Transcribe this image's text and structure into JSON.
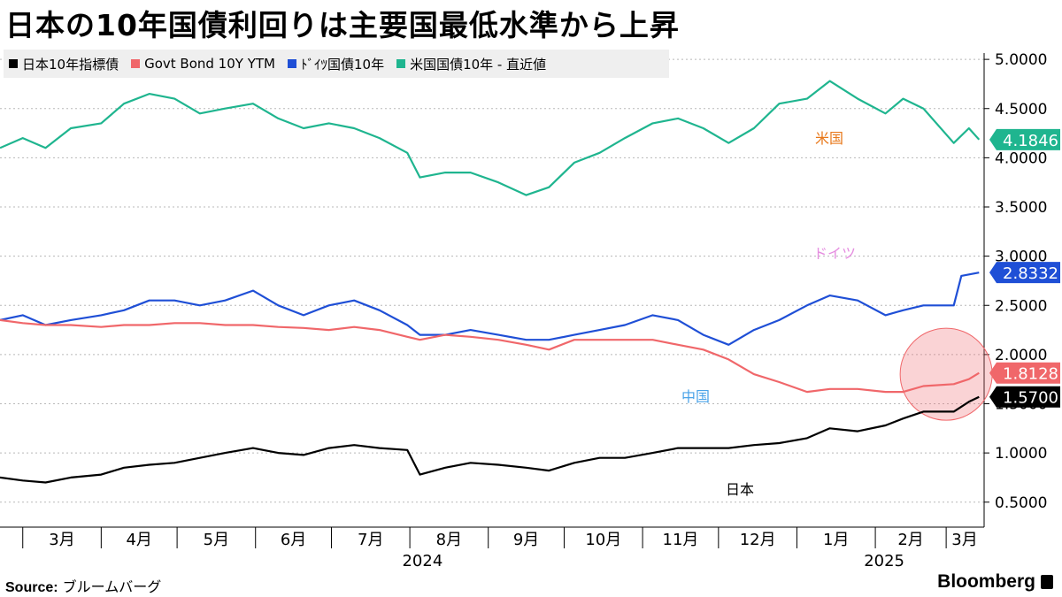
{
  "title": "日本の10年国債利回りは主要国最低水準から上昇",
  "legend": [
    {
      "label": "日本10年指標債",
      "color": "#000000"
    },
    {
      "label": "Govt Bond 10Y YTM",
      "color": "#f0676a"
    },
    {
      "label": "ﾄﾞｲﾂ国債10年",
      "color": "#1f4fd6"
    },
    {
      "label": "米国国債10年 - 直近値",
      "color": "#1fb58f"
    }
  ],
  "chart_data": {
    "type": "line",
    "x_tick_labels": [
      "3月",
      "4月",
      "5月",
      "6月",
      "7月",
      "8月",
      "9月",
      "10月",
      "11月",
      "12月",
      "1月",
      "2月",
      "3月"
    ],
    "x_tick_dates": [
      "2024-03-01",
      "2024-04-01",
      "2024-05-01",
      "2024-06-01",
      "2024-07-01",
      "2024-08-01",
      "2024-09-01",
      "2024-10-01",
      "2024-11-01",
      "2024-12-01",
      "2025-01-01",
      "2025-02-01",
      "2025-03-01"
    ],
    "year_labels": [
      {
        "label": "2024",
        "date": "2024-08-01"
      },
      {
        "label": "2025",
        "date": "2025-02-01"
      }
    ],
    "x_range": [
      "2024-02-21",
      "2025-03-16"
    ],
    "y_ticks": [
      "0.5000",
      "1.0000",
      "1.5000",
      "2.0000",
      "2.5000",
      "3.0000",
      "3.5000",
      "4.0000",
      "4.5000",
      "5.0000"
    ],
    "ylim": [
      0.3,
      5.1
    ],
    "grid": "horizontal dotted",
    "legend_position": "top-left",
    "series": [
      {
        "name": "米国国債10年 - 直近値",
        "label": "米国",
        "color": "#1fb58f",
        "last": "4.1846",
        "points": [
          [
            "2024-02-21",
            4.1
          ],
          [
            "2024-03-01",
            4.2
          ],
          [
            "2024-03-10",
            4.1
          ],
          [
            "2024-03-20",
            4.3
          ],
          [
            "2024-04-01",
            4.35
          ],
          [
            "2024-04-10",
            4.55
          ],
          [
            "2024-04-20",
            4.65
          ],
          [
            "2024-04-30",
            4.6
          ],
          [
            "2024-05-10",
            4.45
          ],
          [
            "2024-05-20",
            4.5
          ],
          [
            "2024-05-31",
            4.55
          ],
          [
            "2024-06-10",
            4.4
          ],
          [
            "2024-06-20",
            4.3
          ],
          [
            "2024-06-30",
            4.35
          ],
          [
            "2024-07-10",
            4.3
          ],
          [
            "2024-07-20",
            4.2
          ],
          [
            "2024-07-31",
            4.05
          ],
          [
            "2024-08-05",
            3.8
          ],
          [
            "2024-08-15",
            3.85
          ],
          [
            "2024-08-25",
            3.85
          ],
          [
            "2024-09-05",
            3.75
          ],
          [
            "2024-09-16",
            3.62
          ],
          [
            "2024-09-25",
            3.7
          ],
          [
            "2024-10-05",
            3.95
          ],
          [
            "2024-10-15",
            4.05
          ],
          [
            "2024-10-25",
            4.2
          ],
          [
            "2024-11-05",
            4.35
          ],
          [
            "2024-11-15",
            4.4
          ],
          [
            "2024-11-25",
            4.3
          ],
          [
            "2024-12-05",
            4.15
          ],
          [
            "2024-12-15",
            4.3
          ],
          [
            "2024-12-25",
            4.55
          ],
          [
            "2025-01-05",
            4.6
          ],
          [
            "2025-01-14",
            4.78
          ],
          [
            "2025-01-25",
            4.6
          ],
          [
            "2025-02-05",
            4.45
          ],
          [
            "2025-02-12",
            4.6
          ],
          [
            "2025-02-20",
            4.5
          ],
          [
            "2025-03-04",
            4.15
          ],
          [
            "2025-03-10",
            4.3
          ],
          [
            "2025-03-14",
            4.1846
          ]
        ]
      },
      {
        "name": "ﾄﾞｲﾂ国債10年",
        "label": "ドイツ",
        "color": "#1f4fd6",
        "last": "2.8332",
        "points": [
          [
            "2024-02-21",
            2.35
          ],
          [
            "2024-03-01",
            2.4
          ],
          [
            "2024-03-10",
            2.3
          ],
          [
            "2024-03-20",
            2.35
          ],
          [
            "2024-04-01",
            2.4
          ],
          [
            "2024-04-10",
            2.45
          ],
          [
            "2024-04-20",
            2.55
          ],
          [
            "2024-04-30",
            2.55
          ],
          [
            "2024-05-10",
            2.5
          ],
          [
            "2024-05-20",
            2.55
          ],
          [
            "2024-05-31",
            2.65
          ],
          [
            "2024-06-10",
            2.5
          ],
          [
            "2024-06-20",
            2.4
          ],
          [
            "2024-06-30",
            2.5
          ],
          [
            "2024-07-10",
            2.55
          ],
          [
            "2024-07-20",
            2.45
          ],
          [
            "2024-07-31",
            2.3
          ],
          [
            "2024-08-05",
            2.2
          ],
          [
            "2024-08-15",
            2.2
          ],
          [
            "2024-08-25",
            2.25
          ],
          [
            "2024-09-05",
            2.2
          ],
          [
            "2024-09-16",
            2.15
          ],
          [
            "2024-09-25",
            2.15
          ],
          [
            "2024-10-05",
            2.2
          ],
          [
            "2024-10-15",
            2.25
          ],
          [
            "2024-10-25",
            2.3
          ],
          [
            "2024-11-05",
            2.4
          ],
          [
            "2024-11-15",
            2.35
          ],
          [
            "2024-11-25",
            2.2
          ],
          [
            "2024-12-05",
            2.1
          ],
          [
            "2024-12-15",
            2.25
          ],
          [
            "2024-12-25",
            2.35
          ],
          [
            "2025-01-05",
            2.5
          ],
          [
            "2025-01-14",
            2.6
          ],
          [
            "2025-01-25",
            2.55
          ],
          [
            "2025-02-05",
            2.4
          ],
          [
            "2025-02-12",
            2.45
          ],
          [
            "2025-02-20",
            2.5
          ],
          [
            "2025-03-04",
            2.5
          ],
          [
            "2025-03-07",
            2.8
          ],
          [
            "2025-03-14",
            2.8332
          ]
        ]
      },
      {
        "name": "Govt Bond 10Y YTM",
        "label": "中国",
        "color": "#f0676a",
        "last": "1.8128",
        "points": [
          [
            "2024-02-21",
            2.35
          ],
          [
            "2024-03-01",
            2.32
          ],
          [
            "2024-03-10",
            2.3
          ],
          [
            "2024-03-20",
            2.3
          ],
          [
            "2024-04-01",
            2.28
          ],
          [
            "2024-04-10",
            2.3
          ],
          [
            "2024-04-20",
            2.3
          ],
          [
            "2024-04-30",
            2.32
          ],
          [
            "2024-05-10",
            2.32
          ],
          [
            "2024-05-20",
            2.3
          ],
          [
            "2024-05-31",
            2.3
          ],
          [
            "2024-06-10",
            2.28
          ],
          [
            "2024-06-20",
            2.27
          ],
          [
            "2024-06-30",
            2.25
          ],
          [
            "2024-07-10",
            2.28
          ],
          [
            "2024-07-20",
            2.25
          ],
          [
            "2024-07-31",
            2.18
          ],
          [
            "2024-08-05",
            2.15
          ],
          [
            "2024-08-15",
            2.2
          ],
          [
            "2024-08-25",
            2.18
          ],
          [
            "2024-09-05",
            2.15
          ],
          [
            "2024-09-16",
            2.1
          ],
          [
            "2024-09-25",
            2.05
          ],
          [
            "2024-10-05",
            2.15
          ],
          [
            "2024-10-15",
            2.15
          ],
          [
            "2024-10-25",
            2.15
          ],
          [
            "2024-11-05",
            2.15
          ],
          [
            "2024-11-15",
            2.1
          ],
          [
            "2024-11-25",
            2.05
          ],
          [
            "2024-12-05",
            1.95
          ],
          [
            "2024-12-15",
            1.8
          ],
          [
            "2024-12-25",
            1.72
          ],
          [
            "2025-01-05",
            1.62
          ],
          [
            "2025-01-14",
            1.65
          ],
          [
            "2025-01-25",
            1.65
          ],
          [
            "2025-02-05",
            1.62
          ],
          [
            "2025-02-12",
            1.62
          ],
          [
            "2025-02-20",
            1.68
          ],
          [
            "2025-03-04",
            1.7
          ],
          [
            "2025-03-10",
            1.75
          ],
          [
            "2025-03-14",
            1.8128
          ]
        ]
      },
      {
        "name": "日本10年指標債",
        "label": "日本",
        "color": "#000000",
        "last": "1.5700",
        "points": [
          [
            "2024-02-21",
            0.75
          ],
          [
            "2024-03-01",
            0.72
          ],
          [
            "2024-03-10",
            0.7
          ],
          [
            "2024-03-20",
            0.75
          ],
          [
            "2024-04-01",
            0.78
          ],
          [
            "2024-04-10",
            0.85
          ],
          [
            "2024-04-20",
            0.88
          ],
          [
            "2024-04-30",
            0.9
          ],
          [
            "2024-05-10",
            0.95
          ],
          [
            "2024-05-20",
            1.0
          ],
          [
            "2024-05-31",
            1.05
          ],
          [
            "2024-06-10",
            1.0
          ],
          [
            "2024-06-20",
            0.98
          ],
          [
            "2024-06-30",
            1.05
          ],
          [
            "2024-07-10",
            1.08
          ],
          [
            "2024-07-20",
            1.05
          ],
          [
            "2024-07-31",
            1.03
          ],
          [
            "2024-08-05",
            0.78
          ],
          [
            "2024-08-15",
            0.85
          ],
          [
            "2024-08-25",
            0.9
          ],
          [
            "2024-09-05",
            0.88
          ],
          [
            "2024-09-16",
            0.85
          ],
          [
            "2024-09-25",
            0.82
          ],
          [
            "2024-10-05",
            0.9
          ],
          [
            "2024-10-15",
            0.95
          ],
          [
            "2024-10-25",
            0.95
          ],
          [
            "2024-11-05",
            1.0
          ],
          [
            "2024-11-15",
            1.05
          ],
          [
            "2024-11-25",
            1.05
          ],
          [
            "2024-12-05",
            1.05
          ],
          [
            "2024-12-15",
            1.08
          ],
          [
            "2024-12-25",
            1.1
          ],
          [
            "2025-01-05",
            1.15
          ],
          [
            "2025-01-14",
            1.25
          ],
          [
            "2025-01-25",
            1.22
          ],
          [
            "2025-02-05",
            1.28
          ],
          [
            "2025-02-12",
            1.35
          ],
          [
            "2025-02-20",
            1.42
          ],
          [
            "2025-03-04",
            1.42
          ],
          [
            "2025-03-10",
            1.52
          ],
          [
            "2025-03-14",
            1.57
          ]
        ]
      }
    ],
    "highlight_circle": {
      "center_date": "2025-03-01",
      "center_value": 1.8
    },
    "units": "%"
  },
  "footer": {
    "source_label": "Source:",
    "source_text": "ブルームバーグ",
    "brand": "Bloomberg"
  }
}
